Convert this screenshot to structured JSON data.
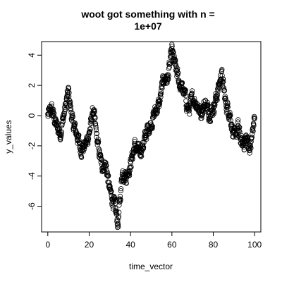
{
  "chart_data": {
    "type": "scatter",
    "title_line1": "woot got something with n =",
    "title_line2": "1e+07",
    "xlabel": "time_vector",
    "ylabel": "y_values",
    "xlim": [
      -3,
      103
    ],
    "ylim": [
      -7.7,
      4.9
    ],
    "xticks": [
      0,
      20,
      40,
      60,
      80,
      100
    ],
    "yticks": [
      -6,
      -4,
      -2,
      0,
      2,
      4
    ],
    "grid": false,
    "marker": "open-circle",
    "point_color": "#000000",
    "point_spacing": 0.1,
    "anchors": [
      [
        0,
        0.0
      ],
      [
        2,
        0.4
      ],
      [
        4,
        -0.6
      ],
      [
        6,
        -1.2
      ],
      [
        8,
        0.2
      ],
      [
        10,
        1.6
      ],
      [
        12,
        -0.5
      ],
      [
        14,
        -1.2
      ],
      [
        16,
        -2.2
      ],
      [
        18,
        -2.0
      ],
      [
        20,
        -1.2
      ],
      [
        22,
        0.4
      ],
      [
        24,
        -1.8
      ],
      [
        26,
        -3.3
      ],
      [
        28,
        -3.2
      ],
      [
        30,
        -5.0
      ],
      [
        32,
        -5.8
      ],
      [
        34,
        -7.2
      ],
      [
        36,
        -3.7
      ],
      [
        38,
        -4.0
      ],
      [
        40,
        -3.2
      ],
      [
        42,
        -2.0
      ],
      [
        44,
        -2.5
      ],
      [
        46,
        -2.0
      ],
      [
        48,
        -1.0
      ],
      [
        50,
        -0.5
      ],
      [
        52,
        0.3
      ],
      [
        54,
        0.8
      ],
      [
        56,
        2.5
      ],
      [
        58,
        2.4
      ],
      [
        60,
        4.3
      ],
      [
        62,
        3.0
      ],
      [
        64,
        2.0
      ],
      [
        66,
        1.5
      ],
      [
        68,
        0.3
      ],
      [
        70,
        1.2
      ],
      [
        72,
        0.8
      ],
      [
        74,
        0.2
      ],
      [
        76,
        0.8
      ],
      [
        78,
        0.2
      ],
      [
        80,
        0.5
      ],
      [
        82,
        1.5
      ],
      [
        84,
        2.8
      ],
      [
        86,
        0.8
      ],
      [
        88,
        0.2
      ],
      [
        90,
        -1.5
      ],
      [
        92,
        -0.8
      ],
      [
        94,
        -2.0
      ],
      [
        96,
        -1.5
      ],
      [
        98,
        -2.2
      ],
      [
        100,
        0.0
      ]
    ],
    "noise_amplitude": 0.7
  }
}
